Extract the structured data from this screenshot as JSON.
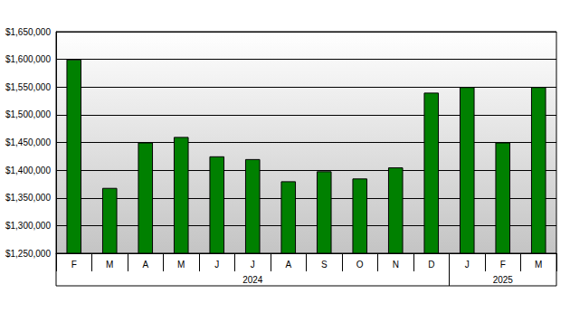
{
  "chart_data": {
    "type": "bar",
    "categories": [
      "F",
      "M",
      "A",
      "M",
      "J",
      "J",
      "A",
      "S",
      "O",
      "N",
      "D",
      "J",
      "F",
      "M"
    ],
    "groups": [
      {
        "label": "2024",
        "span": 11
      },
      {
        "label": "2025",
        "span": 3
      }
    ],
    "values": [
      1600000,
      1368000,
      1450000,
      1460000,
      1425000,
      1420000,
      1380000,
      1398000,
      1385000,
      1405000,
      1540000,
      1550000,
      1450000,
      1550000
    ],
    "color": "#008000",
    "ylim": [
      1250000,
      1650000
    ],
    "yticks": [
      {
        "value": 1250000,
        "label": "$1,250,000"
      },
      {
        "value": 1300000,
        "label": "$1,300,000"
      },
      {
        "value": 1350000,
        "label": "$1,350,000"
      },
      {
        "value": 1400000,
        "label": "$1,400,000"
      },
      {
        "value": 1450000,
        "label": "$1,450,000"
      },
      {
        "value": 1500000,
        "label": "$1,500,000"
      },
      {
        "value": 1550000,
        "label": "$1,550,000"
      },
      {
        "value": 1600000,
        "label": "$1,600,000"
      },
      {
        "value": 1650000,
        "label": "$1,650,000"
      }
    ],
    "grid": true
  }
}
